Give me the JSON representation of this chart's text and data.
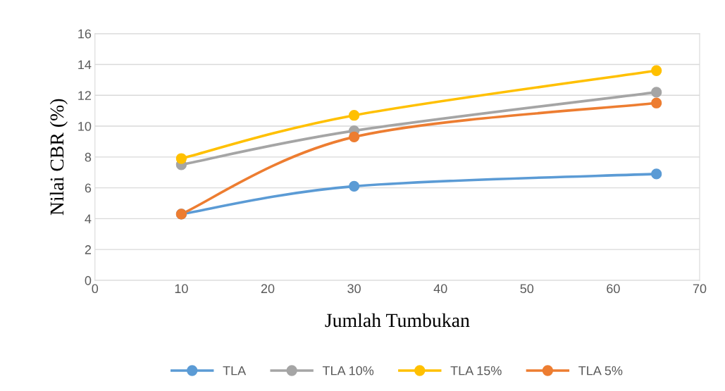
{
  "chart_data": {
    "type": "line",
    "xlabel": "Jumlah Tumbukan",
    "ylabel": "Nilai CBR (%)",
    "x": [
      10,
      30,
      65
    ],
    "series": [
      {
        "name": "TLA",
        "color": "#5b9bd5",
        "values": [
          4.3,
          6.1,
          6.9
        ]
      },
      {
        "name": "TLA 10%",
        "color": "#a5a5a5",
        "values": [
          7.5,
          9.7,
          12.2
        ]
      },
      {
        "name": "TLA 15%",
        "color": "#ffc000",
        "values": [
          7.9,
          10.7,
          13.6
        ]
      },
      {
        "name": "TLA 5%",
        "color": "#ed7d31",
        "values": [
          4.3,
          9.3,
          11.5
        ]
      }
    ],
    "xlim": [
      0,
      70
    ],
    "xticks": [
      0,
      10,
      20,
      30,
      40,
      50,
      60,
      70
    ],
    "ylim": [
      0,
      16
    ],
    "yticks": [
      0,
      2,
      4,
      6,
      8,
      10,
      12,
      14,
      16
    ],
    "grid": "y",
    "legend": "bottom",
    "marker": "circle",
    "line_style": "solid"
  }
}
